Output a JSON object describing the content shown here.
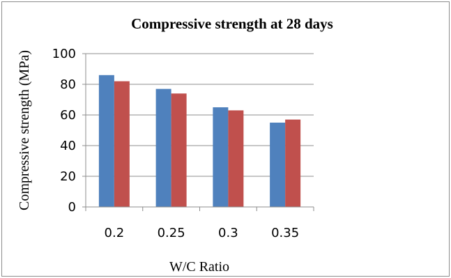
{
  "chart_data": {
    "type": "bar",
    "title": "Compressive strength at 28 days",
    "xlabel": "W/C Ratio",
    "ylabel": "Compressive strength (MPa)",
    "categories": [
      "0.2",
      "0.25",
      "0.3",
      "0.35"
    ],
    "ylim": [
      0,
      100
    ],
    "yticks": [
      "0",
      "20",
      "40",
      "60",
      "80",
      "100"
    ],
    "grid": true,
    "legend": "none",
    "series": [
      {
        "values": [
          86,
          77,
          65,
          55
        ],
        "color": "#4f81bd"
      },
      {
        "values": [
          82,
          74,
          63,
          57
        ],
        "color": "#c0504d"
      }
    ]
  }
}
